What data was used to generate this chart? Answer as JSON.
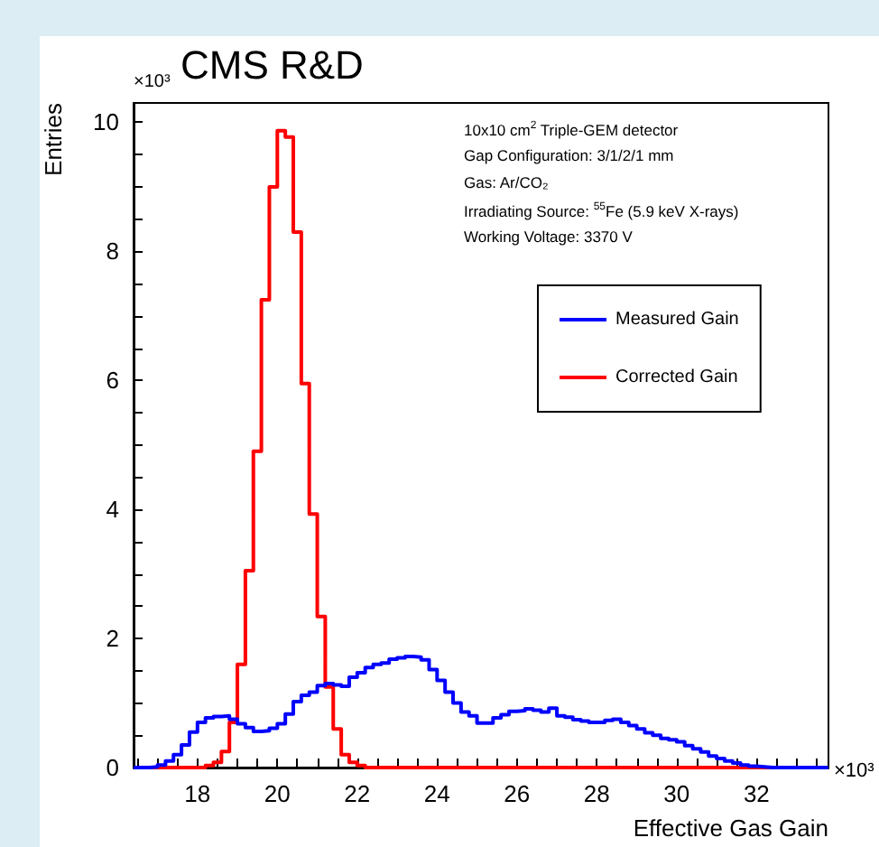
{
  "chart_data": {
    "type": "histogram",
    "title": "CMS R&D",
    "xlabel": "Effective Gas Gain",
    "ylabel": "Entries",
    "annotations": [
      "×10³",
      "×10³",
      "10x10 cm$^{2}$ Triple-GEM detector",
      "Gap Configuration: 3/1/2/1 mm",
      "Gas: Ar/CO₂",
      "Irradiating Source: $^{55}$Fe (5.9 keV X-rays)",
      "Working Voltage: 3370 V"
    ],
    "bins": [
      16.4,
      16.6,
      16.8,
      17.0,
      17.2,
      17.4,
      17.6,
      17.8,
      18.0,
      18.2,
      18.4,
      18.6,
      18.8,
      19.0,
      19.2,
      19.4,
      19.6,
      19.8,
      20.0,
      20.2,
      20.4,
      20.6,
      20.8,
      21.0,
      21.2,
      21.4,
      21.6,
      21.8,
      22.0,
      22.2,
      22.4,
      22.6,
      22.8,
      23.0,
      23.2,
      23.4,
      23.6,
      23.8,
      24.0,
      24.2,
      24.4,
      24.6,
      24.8,
      25.0,
      25.2,
      25.4,
      25.6,
      25.8,
      26.0,
      26.2,
      26.4,
      26.6,
      26.8,
      27.0,
      27.2,
      27.4,
      27.6,
      27.8,
      28.0,
      28.2,
      28.4,
      28.6,
      28.8,
      29.0,
      29.2,
      29.4,
      29.6,
      29.8,
      30.0,
      30.2,
      30.4,
      30.6,
      30.8,
      31.0,
      31.2,
      31.4,
      31.6,
      31.8,
      32.0,
      32.2,
      32.4,
      32.6,
      32.8,
      33.0,
      33.2,
      33.4,
      33.6,
      33.8
    ],
    "series": [
      {
        "name": "Measured Gain",
        "color": "#0000ff",
        "values": [
          0,
          0,
          0.01,
          0.04,
          0.1,
          0.2,
          0.35,
          0.55,
          0.7,
          0.77,
          0.79,
          0.8,
          0.75,
          0.68,
          0.62,
          0.56,
          0.57,
          0.61,
          0.68,
          0.83,
          1.02,
          1.12,
          1.17,
          1.27,
          1.3,
          1.28,
          1.26,
          1.4,
          1.47,
          1.55,
          1.6,
          1.62,
          1.68,
          1.7,
          1.72,
          1.71,
          1.67,
          1.52,
          1.35,
          1.17,
          1.0,
          0.86,
          0.8,
          0.69,
          0.69,
          0.77,
          0.82,
          0.87,
          0.88,
          0.91,
          0.89,
          0.86,
          0.92,
          0.8,
          0.78,
          0.74,
          0.72,
          0.7,
          0.7,
          0.73,
          0.75,
          0.7,
          0.65,
          0.6,
          0.54,
          0.5,
          0.45,
          0.43,
          0.4,
          0.34,
          0.29,
          0.24,
          0.18,
          0.14,
          0.1,
          0.07,
          0.04,
          0.02,
          0.01,
          0,
          0,
          0,
          0,
          0,
          0,
          0,
          0
        ]
      },
      {
        "name": "Corrected Gain",
        "color": "#ff0000",
        "values": [
          0,
          0,
          0,
          0,
          0,
          0,
          0,
          0,
          0,
          0.03,
          0.08,
          0.25,
          0.7,
          1.6,
          3.05,
          4.9,
          7.25,
          9.0,
          9.87,
          9.77,
          8.3,
          5.95,
          3.93,
          2.34,
          1.25,
          0.6,
          0.2,
          0.08,
          0.03,
          0,
          0,
          0,
          0,
          0,
          0,
          0,
          0,
          0,
          0,
          0,
          0,
          0,
          0,
          0,
          0,
          0,
          0,
          0,
          0,
          0,
          0,
          0,
          0,
          0,
          0,
          0,
          0,
          0,
          0,
          0,
          0,
          0,
          0,
          0,
          0,
          0,
          0,
          0,
          0,
          0,
          0,
          0,
          0,
          0,
          0,
          0,
          0,
          0,
          0,
          0,
          0,
          0,
          0,
          0,
          0,
          0,
          0
        ]
      }
    ],
    "xlim": [
      16.4,
      33.8
    ],
    "xticks": [
      18,
      20,
      22,
      24,
      26,
      28,
      30,
      32
    ],
    "ylim": [
      0,
      10.3
    ],
    "yticks": [
      0,
      2,
      4,
      6,
      8,
      10
    ],
    "legend": "top right"
  }
}
